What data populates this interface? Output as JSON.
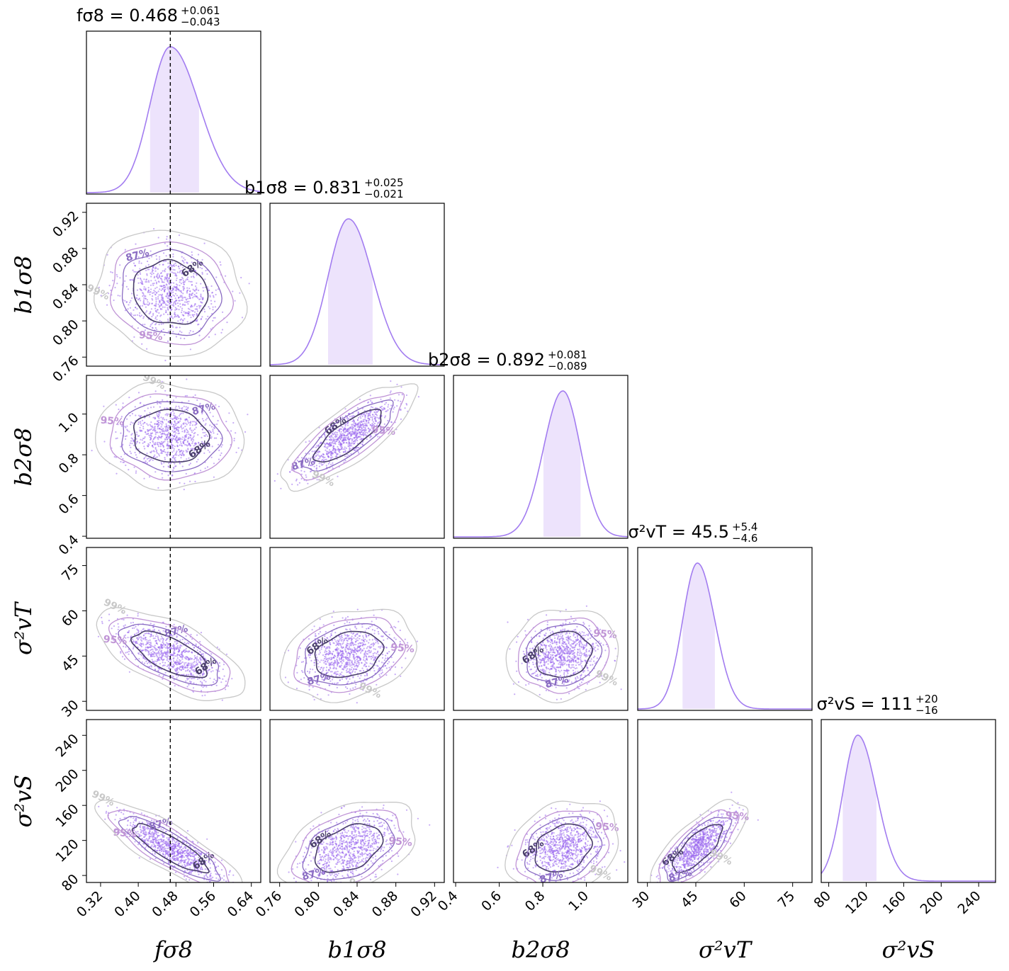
{
  "chart_data": {
    "type": "corner",
    "series_color": "#9966ee",
    "parameters": [
      {
        "key": "fs8",
        "label": "fσ8",
        "title": "fσ8 = 0.468 +0.061 −0.043",
        "title_main": "fσ8 = 0.468",
        "title_plus": "+0.061",
        "title_minus": "−0.043",
        "median": 0.468,
        "err_plus": 0.061,
        "err_minus": 0.043,
        "range": [
          0.29,
          0.66
        ],
        "ticks": [
          0.32,
          0.4,
          0.48,
          0.56,
          0.64
        ],
        "tick_labels": [
          "0.32",
          "0.40",
          "0.48",
          "0.56",
          "0.64"
        ]
      },
      {
        "key": "b1s8",
        "label": "b1σ8",
        "title": "b1σ8 = 0.831 +0.025 −0.021",
        "title_main": "b1σ8 = 0.831",
        "title_plus": "+0.025",
        "title_minus": "−0.021",
        "median": 0.831,
        "err_plus": 0.025,
        "err_minus": 0.021,
        "range": [
          0.75,
          0.93
        ],
        "ticks": [
          0.76,
          0.8,
          0.84,
          0.88,
          0.92
        ],
        "tick_labels": [
          "0.76",
          "0.80",
          "0.84",
          "0.88",
          "0.92"
        ]
      },
      {
        "key": "b2s8",
        "label": "b2σ8",
        "title": "b2σ8 = 0.892 +0.081 −0.089",
        "title_main": "b2σ8 = 0.892",
        "title_plus": "+0.081",
        "title_minus": "−0.089",
        "median": 0.892,
        "err_plus": 0.081,
        "err_minus": 0.089,
        "range": [
          0.39,
          1.19
        ],
        "ticks": [
          0.4,
          0.6,
          0.8,
          1.0
        ],
        "tick_labels": [
          "0.4",
          "0.6",
          "0.8",
          "1.0"
        ]
      },
      {
        "key": "svT",
        "label": "σ²vT",
        "title": "σ²vT = 45.5 +5.4 −4.6",
        "title_main": "σ²vT = 45.5",
        "title_plus": "+5.4",
        "title_minus": "−4.6",
        "median": 45.5,
        "err_plus": 5.4,
        "err_minus": 4.6,
        "range": [
          27,
          81
        ],
        "ticks": [
          30,
          45,
          60,
          75
        ],
        "tick_labels": [
          "30",
          "45",
          "60",
          "75"
        ]
      },
      {
        "key": "svS",
        "label": "σ²vS",
        "title": "σ²vS = 111 +20 −16",
        "title_main": "σ²vS = 111",
        "title_plus": "+20",
        "title_minus": "−16",
        "median": 111,
        "err_plus": 20,
        "err_minus": 16,
        "range": [
          72,
          258
        ],
        "ticks": [
          80,
          120,
          160,
          200,
          240
        ],
        "tick_labels": [
          "80",
          "120",
          "160",
          "200",
          "240"
        ]
      }
    ],
    "correlations": [
      [
        1.0,
        -0.1,
        -0.05,
        -0.65,
        -0.85
      ],
      [
        -0.1,
        1.0,
        0.8,
        0.25,
        0.4
      ],
      [
        -0.05,
        0.8,
        1.0,
        0.1,
        0.25
      ],
      [
        -0.65,
        0.25,
        0.1,
        1.0,
        0.75
      ],
      [
        -0.85,
        0.4,
        0.25,
        0.75,
        1.0
      ]
    ],
    "contour_levels": [
      "68%",
      "87%",
      "95%",
      "99%"
    ],
    "contour_colors": [
      "#4a3f6b",
      "#8a6cc2",
      "#c095d6",
      "#c8c8c8"
    ],
    "truth_line": {
      "parameter": "fs8",
      "value": 0.468,
      "style": "dashed"
    }
  }
}
